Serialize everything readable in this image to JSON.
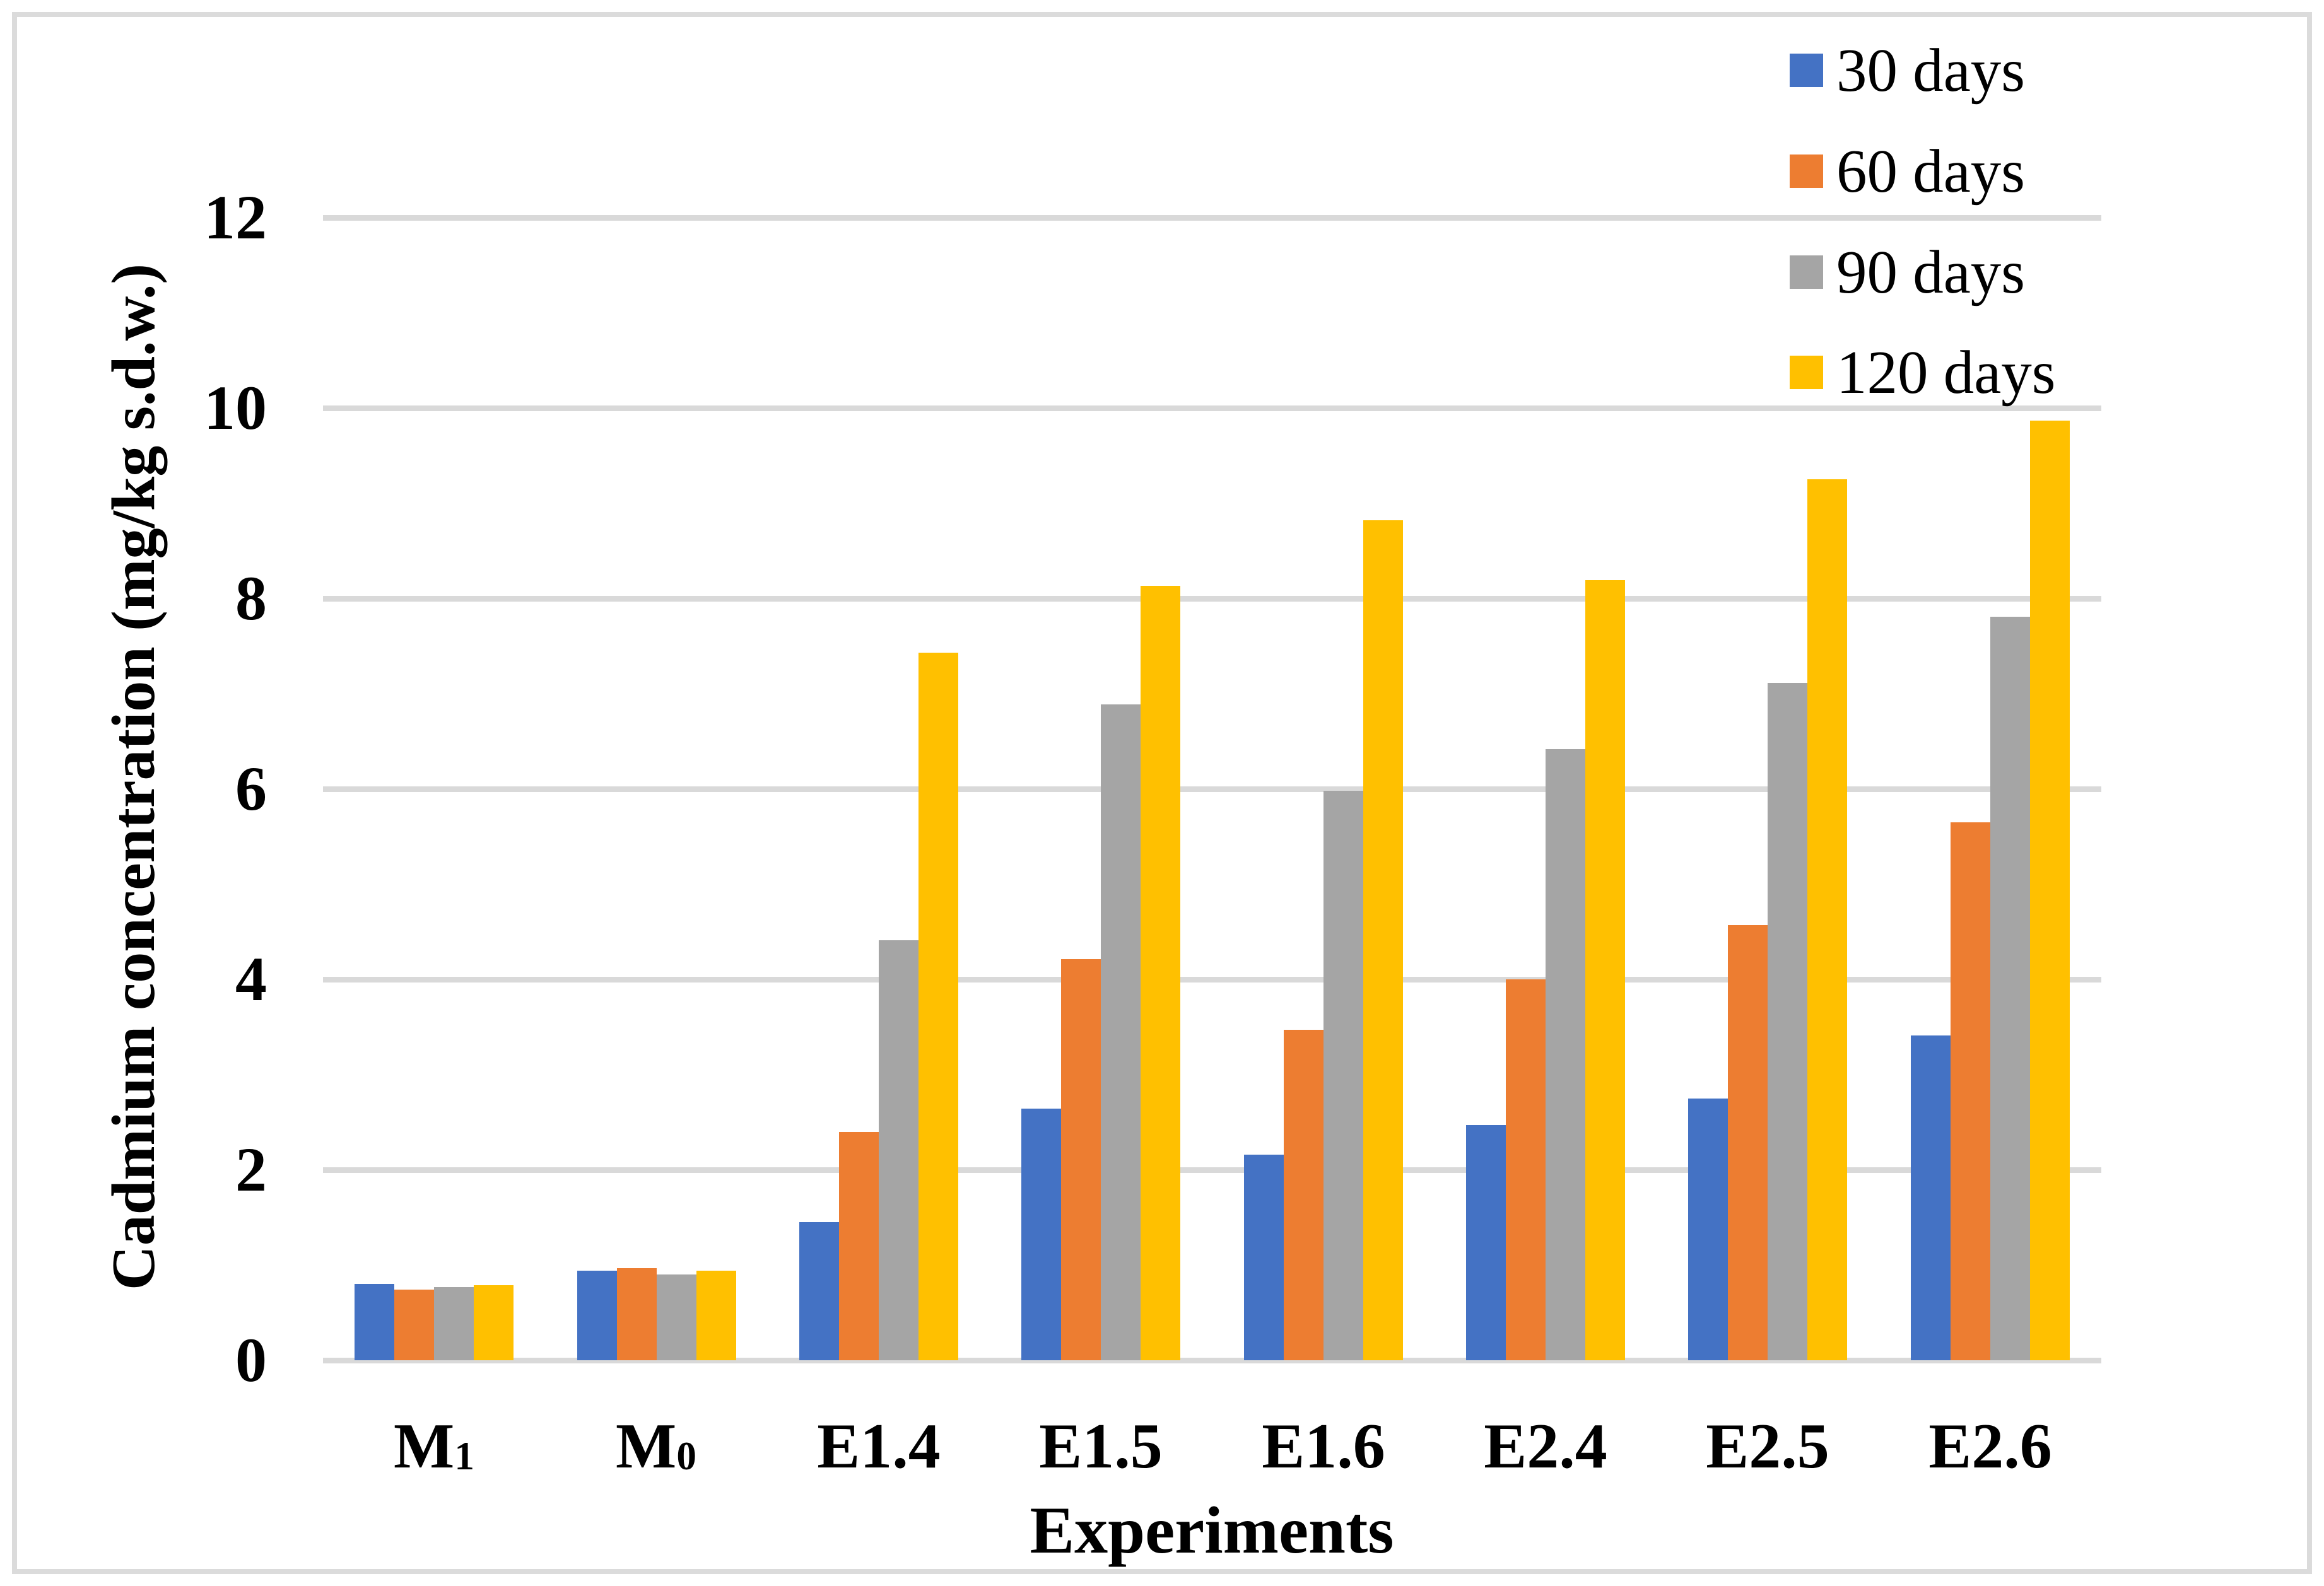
{
  "chart_data": {
    "type": "bar",
    "title": "",
    "xlabel": "Experiments",
    "ylabel": "Cadmium concentration (mg/kg s.d.w.)",
    "ylim": [
      0,
      12
    ],
    "ytick_step": 2,
    "grid": "horizontal",
    "legend_position": "top-right-vertical",
    "categories": [
      {
        "base": "M",
        "sub": "1"
      },
      {
        "base": "M",
        "sub": "0"
      },
      {
        "base": "E1.4",
        "sub": ""
      },
      {
        "base": "E1.5",
        "sub": ""
      },
      {
        "base": "E1.6",
        "sub": ""
      },
      {
        "base": "E2.4",
        "sub": ""
      },
      {
        "base": "E2.5",
        "sub": ""
      },
      {
        "base": "E2.6",
        "sub": ""
      }
    ],
    "series": [
      {
        "name": "30 days",
        "color": "#4472C4",
        "values": [
          0.8,
          0.94,
          1.45,
          2.64,
          2.16,
          2.47,
          2.75,
          3.41
        ]
      },
      {
        "name": "60 days",
        "color": "#ED7D31",
        "values": [
          0.74,
          0.97,
          2.4,
          4.21,
          3.47,
          4.0,
          4.57,
          5.65
        ]
      },
      {
        "name": "90 days",
        "color": "#A5A5A5",
        "values": [
          0.77,
          0.9,
          4.41,
          6.89,
          5.98,
          6.42,
          7.11,
          7.81
        ]
      },
      {
        "name": "120 days",
        "color": "#FFC000",
        "values": [
          0.79,
          0.94,
          7.43,
          8.13,
          8.82,
          8.19,
          9.25,
          9.87
        ]
      }
    ],
    "colors": {
      "gridline": "#D9D9D9",
      "axis_line": "#D9D9D9",
      "frame_border": "#DBDBDB",
      "text": "#000000",
      "background": "#FFFFFF"
    }
  }
}
